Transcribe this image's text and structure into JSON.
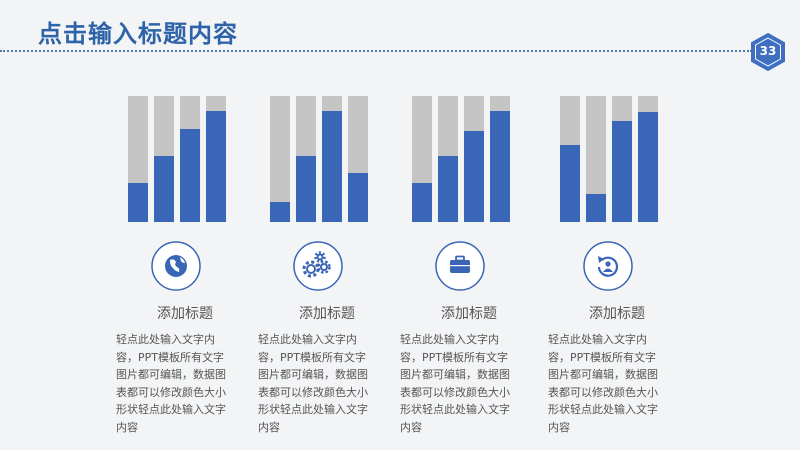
{
  "slide": {
    "title": "点击输入标题内容",
    "page_number": "33"
  },
  "colors": {
    "accent": "#3a66b8",
    "bar_track": "#c4c4c4",
    "title": "#2e63a8",
    "badge": "#3f6fc0"
  },
  "sections": [
    {
      "icon": "globe-icon",
      "heading": "添加标题",
      "text": "轻点此处输入文字内容，PPT模板所有文字图片都可编辑，数据图表都可以修改颜色大小形状轻点此处输入文字内容",
      "bars": [
        0.31,
        0.52,
        0.74,
        0.88
      ]
    },
    {
      "icon": "gears-icon",
      "heading": "添加标题",
      "text": "轻点此处输入文字内容，PPT模板所有文字图片都可编辑，数据图表都可以修改颜色大小形状轻点此处输入文字内容",
      "bars": [
        0.16,
        0.52,
        0.88,
        0.39
      ]
    },
    {
      "icon": "briefcase-icon",
      "heading": "添加标题",
      "text": "轻点此处输入文字内容，PPT模板所有文字图片都可编辑，数据图表都可以修改颜色大小形状轻点此处输入文字内容",
      "bars": [
        0.31,
        0.52,
        0.72,
        0.88
      ]
    },
    {
      "icon": "refresh-person-icon",
      "heading": "添加标题",
      "text": "轻点此处输入文字内容，PPT模板所有文字图片都可编辑，数据图表都可以修改颜色大小形状轻点此处输入文字内容",
      "bars": [
        0.61,
        0.22,
        0.8,
        0.87
      ]
    }
  ]
}
